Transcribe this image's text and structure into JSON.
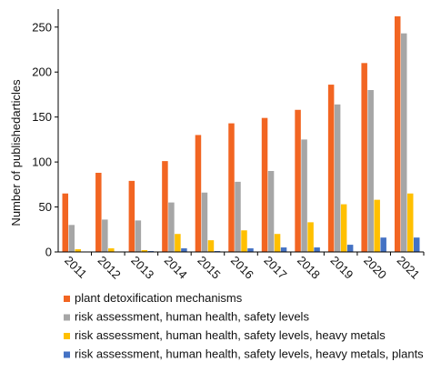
{
  "chart_data": {
    "type": "bar",
    "ylabel": "Number of publishedarticles",
    "xlabel": "",
    "ylim": [
      0,
      270
    ],
    "yticks": [
      0,
      50,
      100,
      150,
      200,
      250
    ],
    "grid": false,
    "legend_placement": "bottom",
    "categories": [
      "2011",
      "2012",
      "2013",
      "2014",
      "2015",
      "2016",
      "2017",
      "2018",
      "2019",
      "2020",
      "2021"
    ],
    "series": [
      {
        "name": "plant detoxification mechanisms",
        "color": "#f26522",
        "values": [
          65,
          88,
          79,
          101,
          130,
          143,
          149,
          158,
          186,
          210,
          262
        ]
      },
      {
        "name": "risk assessment, human health, safety levels",
        "color": "#a6a6a6",
        "values": [
          30,
          36,
          35,
          55,
          66,
          78,
          90,
          125,
          164,
          180,
          243
        ]
      },
      {
        "name": "risk assessment, human health, safety levels, heavy metals",
        "color": "#ffc000",
        "values": [
          3,
          4,
          2,
          20,
          13,
          24,
          20,
          33,
          53,
          58,
          65
        ]
      },
      {
        "name": "risk assessment, human health, safety levels, heavy metals, plants",
        "color": "#4472c4",
        "values": [
          0,
          0,
          1,
          4,
          1,
          4,
          5,
          5,
          8,
          16,
          16
        ]
      }
    ]
  }
}
